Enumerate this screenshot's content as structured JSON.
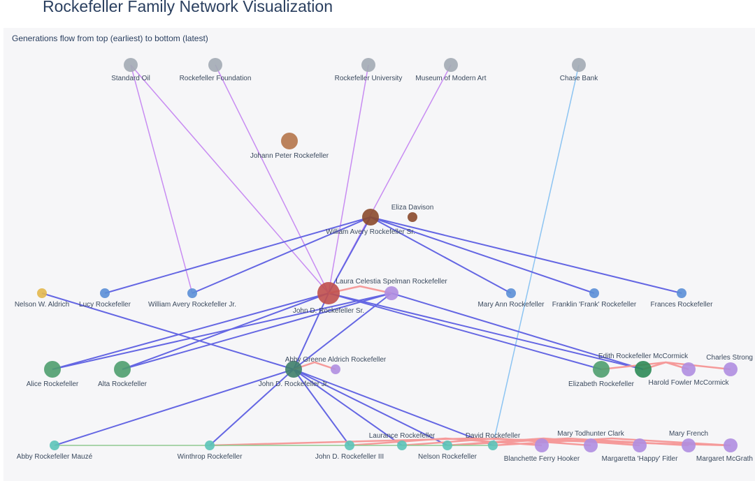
{
  "title": "Rockefeller Family Network Visualization",
  "annotation": "Generations flow from top (earliest) to bottom (latest)",
  "colors": {
    "org": "#a3abb4",
    "parent_edge": "#6466e3",
    "org_edge": "#c88cf2",
    "bank_edge": "#8cc4f2",
    "marriage_edge": "#f59a9a",
    "sibling_edge": "#8fc98f"
  },
  "nodes": [
    {
      "id": "so",
      "name": "Standard Oil",
      "color": "#a3abb4",
      "size": "m"
    },
    {
      "id": "rf",
      "name": "Rockefeller Foundation",
      "color": "#a3abb4",
      "size": "m"
    },
    {
      "id": "ru",
      "name": "Rockefeller University",
      "color": "#a3abb4",
      "size": "m"
    },
    {
      "id": "moma",
      "name": "Museum of Modern Art",
      "color": "#a3abb4",
      "size": "m"
    },
    {
      "id": "cb",
      "name": "Chase Bank",
      "color": "#a3abb4",
      "size": "m"
    },
    {
      "id": "jpr",
      "name": "Johann Peter Rockefeller",
      "color": "#b5764a",
      "size": "l"
    },
    {
      "id": "wars",
      "name": "William Avery Rockefeller Sr.",
      "color": "#8b4a2b",
      "size": "l"
    },
    {
      "id": "ed",
      "name": "Eliza Davison",
      "color": "#8b4a2b",
      "size": "s"
    },
    {
      "id": "nwa",
      "name": "Nelson W. Aldrich",
      "color": "#e3b84c",
      "size": "s"
    },
    {
      "id": "lr",
      "name": "Lucy Rockefeller",
      "color": "#5b8fd6",
      "size": "s"
    },
    {
      "id": "warj",
      "name": "William Avery Rockefeller Jr.",
      "color": "#5b8fd6",
      "size": "s"
    },
    {
      "id": "jdrs",
      "name": "John D. Rockefeller Sr.",
      "color": "#c0504d",
      "size": "xl"
    },
    {
      "id": "lcs",
      "name": "Laura Celestia Spelman Rockefeller",
      "color": "#b08ee0",
      "size": "m"
    },
    {
      "id": "mar",
      "name": "Mary Ann Rockefeller",
      "color": "#5b8fd6",
      "size": "s"
    },
    {
      "id": "ffr",
      "name": "Franklin 'Frank' Rockefeller",
      "color": "#5b8fd6",
      "size": "s"
    },
    {
      "id": "fr",
      "name": "Frances Rockefeller",
      "color": "#5b8fd6",
      "size": "s"
    },
    {
      "id": "alice",
      "name": "Alice Rockefeller",
      "color": "#4f9e6e",
      "size": "l"
    },
    {
      "id": "alta",
      "name": "Alta Rockefeller",
      "color": "#4f9e6e",
      "size": "l"
    },
    {
      "id": "jdrj",
      "name": "John D. Rockefeller Jr.",
      "color": "#3f7f6a",
      "size": "l"
    },
    {
      "id": "abby",
      "name": "Abby Greene Aldrich Rockefeller",
      "color": "#b08ee0",
      "size": "s"
    },
    {
      "id": "eliz",
      "name": "Elizabeth Rockefeller",
      "color": "#4f9e6e",
      "size": "l"
    },
    {
      "id": "edith",
      "name": "Edith Rockefeller McCormick",
      "color": "#2e8b57",
      "size": "l"
    },
    {
      "id": "hfm",
      "name": "Harold Fowler McCormick",
      "color": "#b08ee0",
      "size": "m"
    },
    {
      "id": "cs",
      "name": "Charles Strong",
      "color": "#b08ee0",
      "size": "m"
    },
    {
      "id": "arm",
      "name": "Abby Rockefeller Mauzé",
      "color": "#5cc4b8",
      "size": "s"
    },
    {
      "id": "win",
      "name": "Winthrop Rockefeller",
      "color": "#5cc4b8",
      "size": "s"
    },
    {
      "id": "jdr3",
      "name": "John D. Rockefeller III",
      "color": "#5cc4b8",
      "size": "s"
    },
    {
      "id": "laur",
      "name": "Laurance Rockefeller",
      "color": "#5cc4b8",
      "size": "s"
    },
    {
      "id": "nels",
      "name": "Nelson Rockefeller",
      "color": "#5cc4b8",
      "size": "s"
    },
    {
      "id": "dav",
      "name": "David Rockefeller",
      "color": "#5cc4b8",
      "size": "s"
    },
    {
      "id": "bfh",
      "name": "Blanchette Ferry Hooker",
      "color": "#b08ee0",
      "size": "m"
    },
    {
      "id": "mtc",
      "name": "Mary Todhunter Clark",
      "color": "#b08ee0",
      "size": "m"
    },
    {
      "id": "hap",
      "name": "Margaretta 'Happy' Fitler",
      "color": "#b08ee0",
      "size": "m"
    },
    {
      "id": "mf",
      "name": "Mary French",
      "color": "#b08ee0",
      "size": "m"
    },
    {
      "id": "pm",
      "name": "Margaret McGrath",
      "color": "#b08ee0",
      "size": "m"
    }
  ],
  "edges": [
    [
      "so",
      "jdrs",
      "org"
    ],
    [
      "so",
      "warj",
      "org"
    ],
    [
      "rf",
      "jdrs",
      "org"
    ],
    [
      "ru",
      "jdrs",
      "org"
    ],
    [
      "moma",
      "jdrs",
      "org"
    ],
    [
      "cb",
      "dav",
      "bank"
    ],
    [
      "wars",
      "lr",
      "parent"
    ],
    [
      "wars",
      "warj",
      "parent"
    ],
    [
      "wars",
      "jdrs",
      "parent"
    ],
    [
      "wars",
      "mar",
      "parent"
    ],
    [
      "wars",
      "ffr",
      "parent"
    ],
    [
      "wars",
      "fr",
      "parent"
    ],
    [
      "jdrs",
      "alice",
      "parent"
    ],
    [
      "jdrs",
      "alta",
      "parent"
    ],
    [
      "jdrs",
      "jdrj",
      "parent"
    ],
    [
      "jdrs",
      "eliz",
      "parent"
    ],
    [
      "jdrs",
      "edith",
      "parent"
    ],
    [
      "lcs",
      "alice",
      "parent"
    ],
    [
      "lcs",
      "alta",
      "parent"
    ],
    [
      "lcs",
      "jdrj",
      "parent"
    ],
    [
      "lcs",
      "edith",
      "parent"
    ],
    [
      "nwa",
      "jdrj",
      "parent"
    ],
    [
      "jdrj",
      "arm",
      "parent"
    ],
    [
      "jdrj",
      "win",
      "parent"
    ],
    [
      "jdrj",
      "jdr3",
      "parent"
    ],
    [
      "jdrj",
      "laur",
      "parent"
    ],
    [
      "jdrj",
      "nels",
      "parent"
    ],
    [
      "jdrj",
      "dav",
      "parent"
    ],
    [
      "jdrs",
      "lcs",
      "marriage"
    ],
    [
      "jdrj",
      "abby",
      "marriage"
    ],
    [
      "edith",
      "hfm",
      "marriage"
    ],
    [
      "eliz",
      "cs",
      "marriage"
    ],
    [
      "jdr3",
      "bfh",
      "marriage"
    ],
    [
      "laur",
      "mtc",
      "marriage"
    ],
    [
      "nels",
      "hap",
      "marriage"
    ],
    [
      "nels",
      "mf",
      "marriage"
    ],
    [
      "dav",
      "pm",
      "marriage"
    ],
    [
      "win",
      "pm",
      "marriage"
    ],
    [
      "arm",
      "dav",
      "sibling"
    ]
  ]
}
